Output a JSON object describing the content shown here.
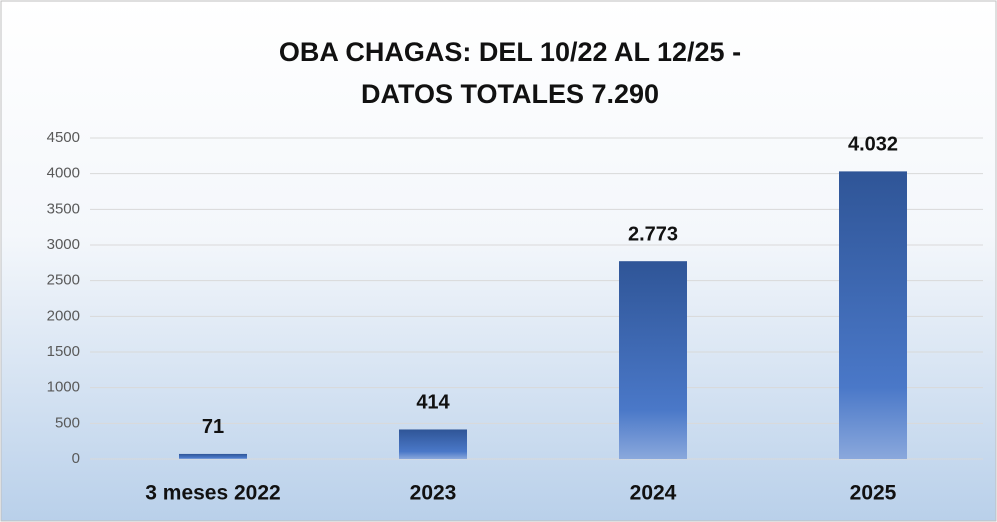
{
  "chart_data": {
    "type": "bar",
    "title": [
      "OBA CHAGAS:  DEL 10/22 AL 12/25 -",
      "DATOS TOTALES 7.290"
    ],
    "categories": [
      "3 meses 2022",
      "2023",
      "2024",
      "2025"
    ],
    "values": [
      71,
      414,
      2773,
      4032
    ],
    "value_labels": [
      "71",
      "414",
      "2.773",
      "4.032"
    ],
    "color": "#2f5597",
    "ylim": [
      0,
      4500
    ],
    "yticks": [
      0,
      500,
      1000,
      1500,
      2000,
      2500,
      3000,
      3500,
      4000,
      4500
    ],
    "grid": true
  }
}
